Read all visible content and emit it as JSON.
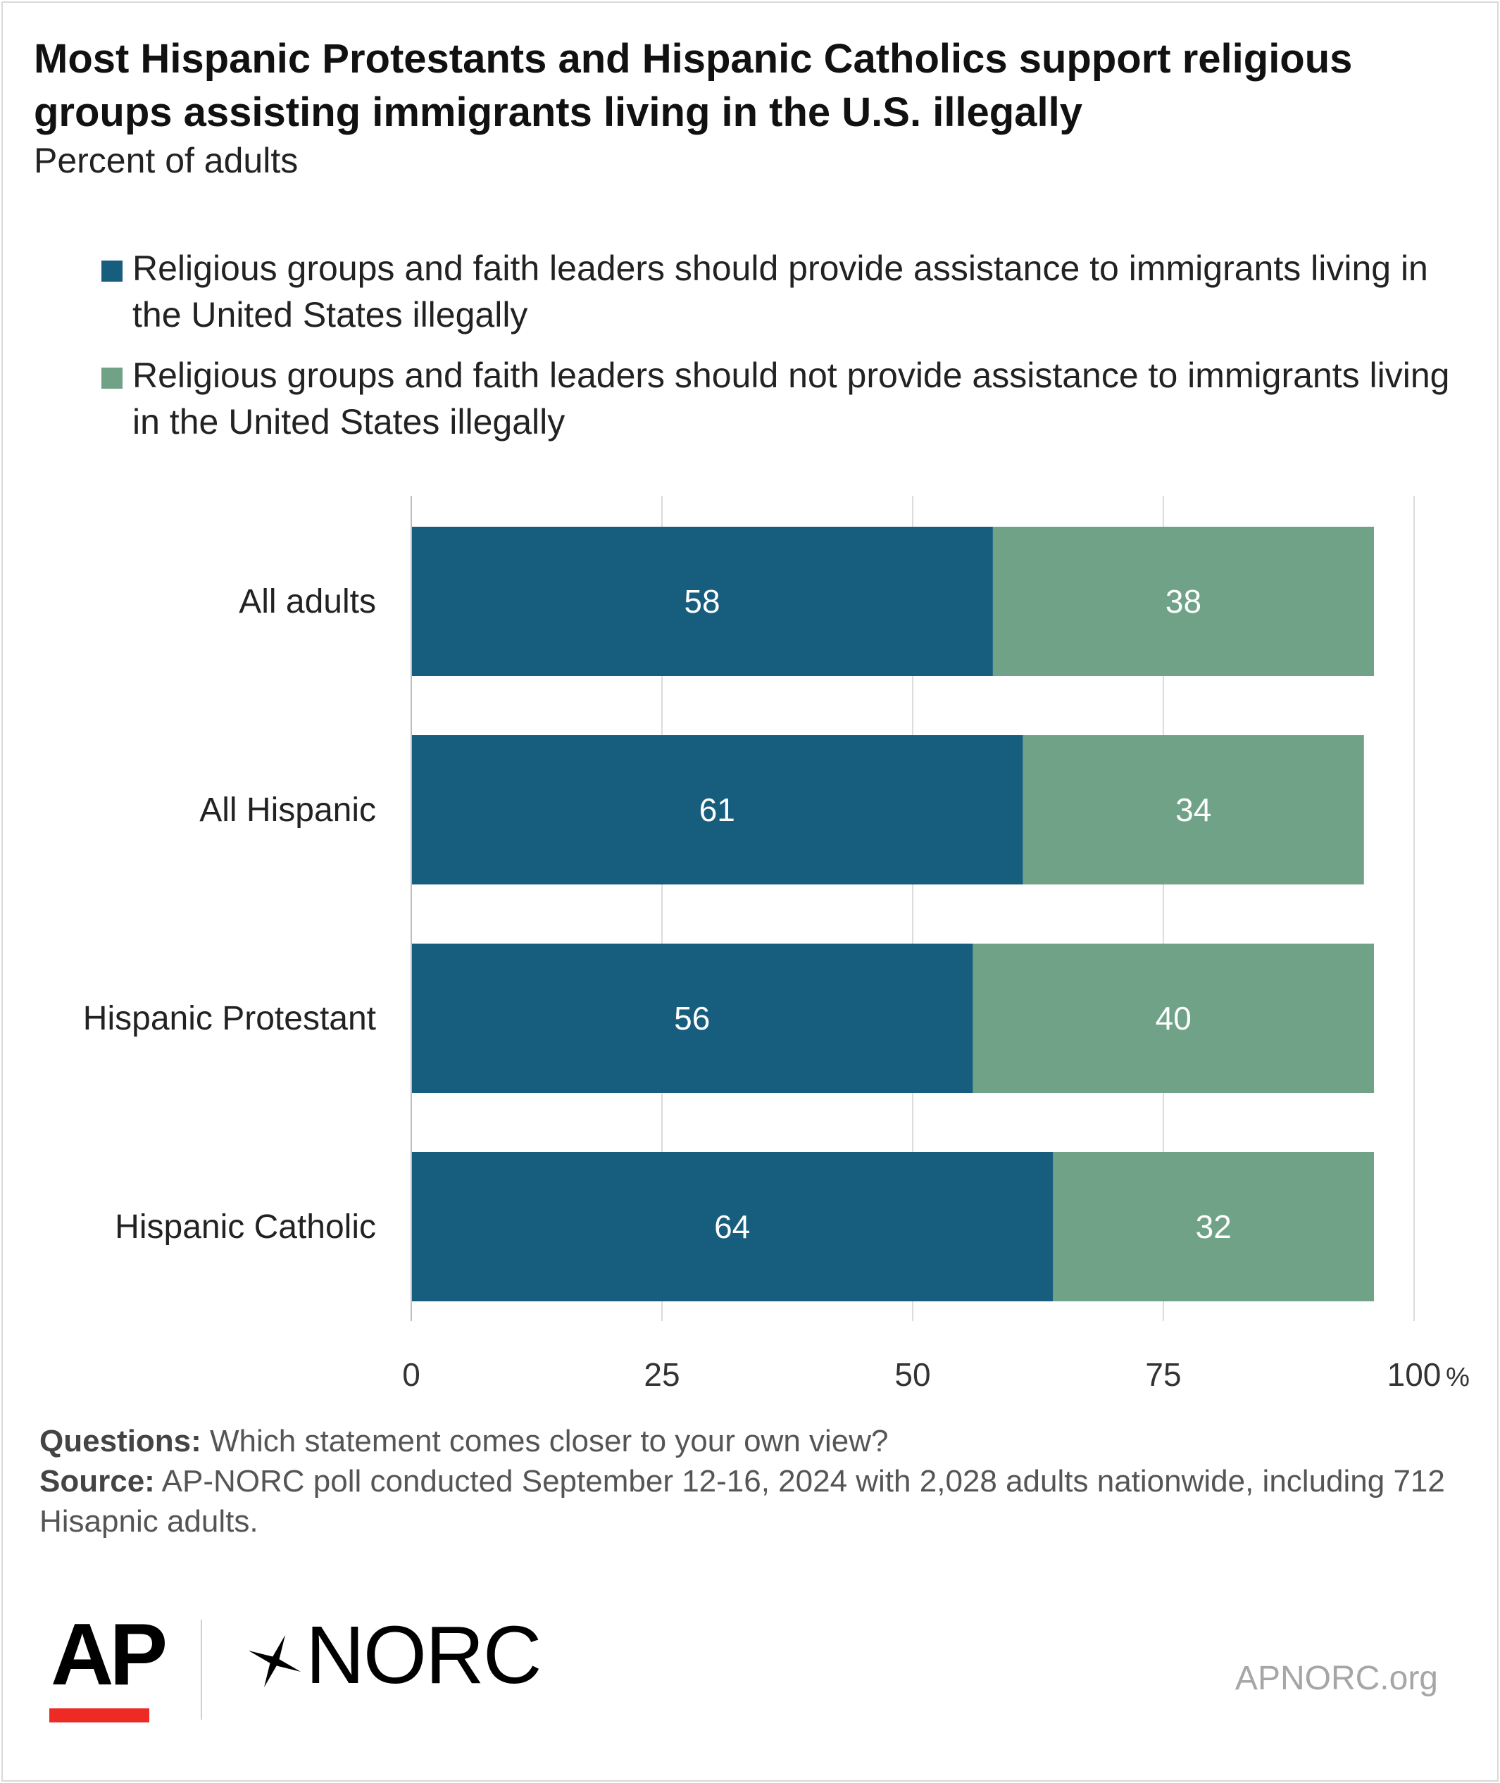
{
  "header": {
    "title": "Most Hispanic Protestants and Hispanic Catholics support religious groups assisting immigrants living in the U.S. illegally",
    "subtitle": "Percent of adults"
  },
  "legend": [
    {
      "label": "Religious groups and faith leaders should provide assistance to immigrants living in the United States illegally",
      "color": "#175e7e"
    },
    {
      "label": "Religious groups and faith leaders should not provide assistance to immigrants living in the United States illegally",
      "color": "#70a288"
    }
  ],
  "chart_data": {
    "type": "bar",
    "orientation": "horizontal",
    "stacked": true,
    "categories": [
      "All adults",
      "All Hispanic",
      "Hispanic Protestant",
      "Hispanic Catholic"
    ],
    "series": [
      {
        "name": "Religious groups and faith leaders should provide assistance to immigrants living in the United States illegally",
        "values": [
          58,
          61,
          56,
          64
        ],
        "color": "#175e7e"
      },
      {
        "name": "Religious groups and faith leaders should not provide assistance to immigrants living in the United States illegally",
        "values": [
          38,
          34,
          40,
          32
        ],
        "color": "#70a288"
      }
    ],
    "x_ticks": [
      0,
      25,
      50,
      75,
      100
    ],
    "x_unit": "%",
    "xlim": [
      0,
      100
    ],
    "grid": true,
    "legend_position": "top"
  },
  "footer": {
    "questions_label": "Questions:",
    "questions_text": "Which statement comes closer to your own view?",
    "source_label": "Source:",
    "source_text": "AP-NORC poll conducted September 12-16, 2024 with 2,028 adults nationwide, including 712 Hisapnic adults."
  },
  "branding": {
    "ap_logo": "AP",
    "norc_logo": "NORC",
    "site": "APNORC.org"
  }
}
